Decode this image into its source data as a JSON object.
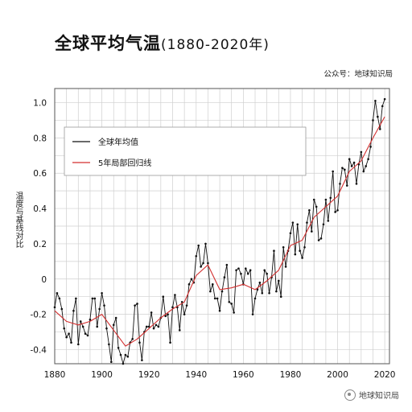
{
  "header": {
    "title": "全球平均气温",
    "title_years": "(1880-2020年)",
    "source": "公众号：地球知识局"
  },
  "footer": {
    "label": "地球知识局"
  },
  "chart_data": {
    "type": "line",
    "ylabel": "温度与基线对比",
    "xlim": [
      1880,
      2022
    ],
    "ylim": [
      -0.48,
      1.08
    ],
    "x_ticks": [
      1880,
      1900,
      1920,
      1940,
      1960,
      1980,
      2000,
      2020
    ],
    "y_ticks": [
      -0.4,
      -0.2,
      0,
      0.2,
      0.4,
      0.6,
      0.8,
      1.0
    ],
    "y_tick_labels": [
      "-0.4",
      "-0.2",
      "0",
      "0.2",
      "0.4",
      "0.6",
      "0.8",
      "1.0"
    ],
    "grid": true,
    "legend_position": "top-left",
    "series": [
      {
        "name": "全球年均值",
        "color": "#111111",
        "x": [
          1880,
          1881,
          1882,
          1883,
          1884,
          1885,
          1886,
          1887,
          1888,
          1889,
          1890,
          1891,
          1892,
          1893,
          1894,
          1895,
          1896,
          1897,
          1898,
          1899,
          1900,
          1901,
          1902,
          1903,
          1904,
          1905,
          1906,
          1907,
          1908,
          1909,
          1910,
          1911,
          1912,
          1913,
          1914,
          1915,
          1916,
          1917,
          1918,
          1919,
          1920,
          1921,
          1922,
          1923,
          1924,
          1925,
          1926,
          1927,
          1928,
          1929,
          1930,
          1931,
          1932,
          1933,
          1934,
          1935,
          1936,
          1937,
          1938,
          1939,
          1940,
          1941,
          1942,
          1943,
          1944,
          1945,
          1946,
          1947,
          1948,
          1949,
          1950,
          1951,
          1952,
          1953,
          1954,
          1955,
          1956,
          1957,
          1958,
          1959,
          1960,
          1961,
          1962,
          1963,
          1964,
          1965,
          1966,
          1967,
          1968,
          1969,
          1970,
          1971,
          1972,
          1973,
          1974,
          1975,
          1976,
          1977,
          1978,
          1979,
          1980,
          1981,
          1982,
          1983,
          1984,
          1985,
          1986,
          1987,
          1988,
          1989,
          1990,
          1991,
          1992,
          1993,
          1994,
          1995,
          1996,
          1997,
          1998,
          1999,
          2000,
          2001,
          2002,
          2003,
          2004,
          2005,
          2006,
          2007,
          2008,
          2009,
          2010,
          2011,
          2012,
          2013,
          2014,
          2015,
          2016,
          2017,
          2018,
          2019,
          2020
        ],
        "values": [
          -0.16,
          -0.08,
          -0.11,
          -0.17,
          -0.28,
          -0.33,
          -0.31,
          -0.36,
          -0.18,
          -0.11,
          -0.37,
          -0.24,
          -0.27,
          -0.31,
          -0.32,
          -0.23,
          -0.11,
          -0.11,
          -0.27,
          -0.17,
          -0.08,
          -0.15,
          -0.28,
          -0.37,
          -0.47,
          -0.26,
          -0.22,
          -0.39,
          -0.43,
          -0.48,
          -0.43,
          -0.44,
          -0.36,
          -0.34,
          -0.15,
          -0.14,
          -0.36,
          -0.46,
          -0.3,
          -0.27,
          -0.27,
          -0.19,
          -0.28,
          -0.26,
          -0.27,
          -0.22,
          -0.1,
          -0.21,
          -0.2,
          -0.36,
          -0.16,
          -0.09,
          -0.16,
          -0.29,
          -0.13,
          -0.2,
          -0.15,
          -0.03,
          -0.0,
          -0.02,
          0.13,
          0.19,
          0.07,
          0.09,
          0.2,
          0.09,
          -0.07,
          -0.03,
          -0.11,
          -0.11,
          -0.18,
          -0.07,
          0.01,
          0.08,
          -0.13,
          -0.14,
          -0.19,
          0.05,
          0.06,
          0.03,
          -0.03,
          0.06,
          0.03,
          0.05,
          -0.2,
          -0.11,
          -0.06,
          -0.02,
          -0.08,
          0.05,
          0.03,
          -0.08,
          0.01,
          0.16,
          -0.07,
          -0.01,
          -0.1,
          0.18,
          0.07,
          0.16,
          0.26,
          0.32,
          0.14,
          0.31,
          0.16,
          0.12,
          0.18,
          0.32,
          0.39,
          0.27,
          0.45,
          0.41,
          0.22,
          0.23,
          0.31,
          0.45,
          0.33,
          0.46,
          0.61,
          0.38,
          0.39,
          0.54,
          0.63,
          0.62,
          0.53,
          0.68,
          0.64,
          0.66,
          0.54,
          0.65,
          0.72,
          0.61,
          0.64,
          0.68,
          0.75,
          0.9,
          1.01,
          0.92,
          0.85,
          0.98,
          1.02
        ]
      },
      {
        "name": "5年局部回归线",
        "color": "#d32f2f",
        "x": [
          1880,
          1885,
          1890,
          1895,
          1900,
          1905,
          1910,
          1915,
          1920,
          1925,
          1930,
          1935,
          1940,
          1945,
          1950,
          1955,
          1960,
          1965,
          1970,
          1975,
          1980,
          1985,
          1990,
          1995,
          2000,
          2005,
          2010,
          2015,
          2020
        ],
        "values": [
          -0.18,
          -0.24,
          -0.26,
          -0.24,
          -0.2,
          -0.29,
          -0.38,
          -0.34,
          -0.28,
          -0.22,
          -0.17,
          -0.13,
          0.02,
          0.08,
          -0.06,
          -0.05,
          -0.03,
          -0.06,
          -0.01,
          0.05,
          0.19,
          0.22,
          0.35,
          0.41,
          0.47,
          0.61,
          0.67,
          0.8,
          0.92
        ]
      }
    ]
  }
}
